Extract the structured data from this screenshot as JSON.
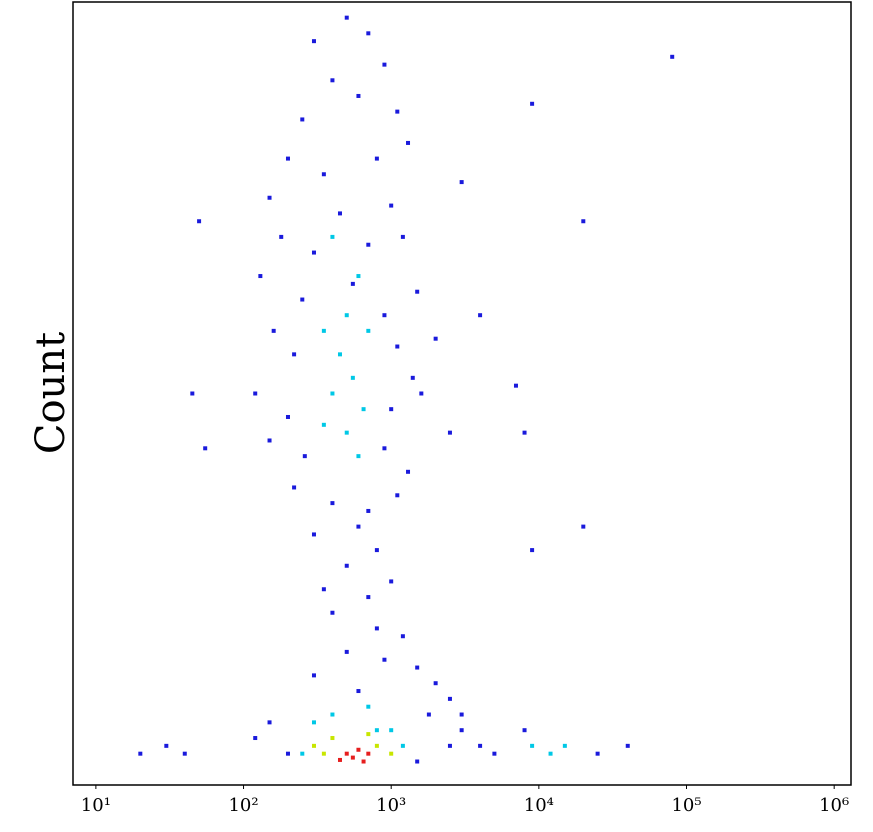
{
  "chart_data": {
    "type": "scatter",
    "ylabel": "Count",
    "xscale": "log",
    "xlim": [
      7,
      1300000
    ],
    "ylim": [
      0,
      100
    ],
    "xticks": [
      {
        "value": 10,
        "label": "10¹"
      },
      {
        "value": 100,
        "label": "10²"
      },
      {
        "value": 1000,
        "label": "10³"
      },
      {
        "value": 10000,
        "label": "10⁴"
      },
      {
        "value": 100000,
        "label": "10⁵"
      },
      {
        "value": 1000000,
        "label": "10⁶"
      }
    ],
    "series": [
      {
        "color": "#1a1adc",
        "x": [
          300,
          500,
          700,
          400,
          900,
          250,
          600,
          1100,
          200,
          350,
          800,
          1300,
          150,
          450,
          1000,
          180,
          300,
          700,
          1200,
          130,
          250,
          550,
          900,
          1500,
          160,
          220,
          1100,
          1400,
          120,
          200,
          1000,
          1600,
          150,
          260,
          900,
          1300,
          220,
          400,
          700,
          1100,
          300,
          600,
          800,
          500,
          350,
          700,
          1000,
          400,
          800,
          1200,
          500,
          900,
          1500,
          300,
          2000,
          600,
          2500,
          3000,
          150,
          120,
          200,
          1500,
          2500,
          5000,
          40,
          30,
          20,
          3000,
          1800,
          4000,
          8000,
          40000,
          25000,
          80000,
          9000,
          4000,
          7000,
          20000,
          8000,
          20000,
          9000,
          3000,
          50,
          45,
          55,
          2000,
          2500
        ],
        "values": [
          95,
          98,
          96,
          90,
          92,
          85,
          88,
          86,
          80,
          78,
          80,
          82,
          75,
          73,
          74,
          70,
          68,
          69,
          70,
          65,
          62,
          64,
          60,
          63,
          58,
          55,
          56,
          52,
          50,
          47,
          48,
          50,
          44,
          42,
          43,
          40,
          38,
          36,
          35,
          37,
          32,
          33,
          30,
          28,
          25,
          24,
          26,
          22,
          20,
          19,
          17,
          16,
          15,
          14,
          13,
          12,
          11,
          9,
          8,
          6,
          4,
          3,
          5,
          4,
          4,
          5,
          4,
          7,
          9,
          5,
          7,
          5,
          4,
          93,
          87,
          60,
          51,
          72,
          45,
          33,
          30,
          77,
          72,
          50,
          43,
          57,
          45
        ]
      },
      {
        "color": "#00c8e6",
        "x": [
          400,
          600,
          500,
          350,
          700,
          450,
          550,
          400,
          650,
          500,
          350,
          600,
          300,
          800,
          1200,
          250,
          9000,
          15000,
          12000,
          700,
          400,
          1000
        ],
        "values": [
          70,
          65,
          60,
          58,
          58,
          55,
          52,
          50,
          48,
          45,
          46,
          42,
          8,
          7,
          5,
          4,
          5,
          5,
          4,
          10,
          9,
          7
        ]
      },
      {
        "color": "#c8e600",
        "x": [
          400,
          800,
          350,
          300,
          1000,
          700
        ],
        "values": [
          6,
          5,
          4,
          5,
          4,
          6.5
        ]
      },
      {
        "color": "#e61e1e",
        "x": [
          500,
          600,
          550,
          700,
          450,
          650
        ],
        "values": [
          4,
          4.5,
          3.5,
          4,
          3.2,
          3
        ]
      }
    ]
  }
}
